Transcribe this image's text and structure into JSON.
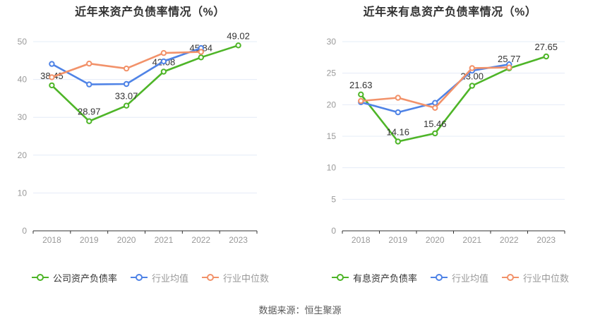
{
  "page": {
    "source_note": "数据来源：恒生聚源"
  },
  "colors": {
    "company_line": "#4eb528",
    "industry_avg_line": "#4f83e6",
    "industry_median_line": "#f2926a",
    "grid_line": "#e4ecf7",
    "axis_line": "#333333",
    "tick_label": "#999999",
    "data_label": "#333333",
    "title_text": "#333333"
  },
  "chart_data": [
    {
      "type": "line",
      "title": "近年来资产负债率情况（%）",
      "categories": [
        "2018",
        "2019",
        "2020",
        "2021",
        "2022",
        "2023"
      ],
      "ylim": [
        0,
        50
      ],
      "yticks": [
        0,
        10,
        20,
        30,
        40,
        50
      ],
      "grid": true,
      "legend_position": "bottom",
      "series": [
        {
          "name": "公司资产负债率",
          "color": "company_line",
          "values": [
            38.45,
            28.97,
            33.07,
            42.08,
            45.84,
            49.02
          ],
          "point_labels": [
            "38.45",
            "28.97",
            "33.07",
            "42.08",
            "45.84",
            "49.02"
          ]
        },
        {
          "name": "行业均值",
          "color": "industry_avg_line",
          "values": [
            44.1,
            38.7,
            38.8,
            44.8,
            48.3,
            null
          ]
        },
        {
          "name": "行业中位数",
          "color": "industry_median_line",
          "values": [
            40.6,
            44.2,
            42.9,
            47.0,
            47.3,
            null
          ]
        }
      ]
    },
    {
      "type": "line",
      "title": "近年来有息资产负债率情况（%）",
      "categories": [
        "2018",
        "2019",
        "2020",
        "2021",
        "2022",
        "2023"
      ],
      "ylim": [
        0,
        30
      ],
      "yticks": [
        0,
        5,
        10,
        15,
        20,
        25,
        30
      ],
      "grid": true,
      "legend_position": "bottom",
      "series": [
        {
          "name": "有息资产负债率",
          "color": "company_line",
          "values": [
            21.63,
            14.16,
            15.46,
            23.0,
            25.77,
            27.65
          ],
          "point_labels": [
            "21.63",
            "14.16",
            "15.46",
            "23.00",
            "25.77",
            "27.65"
          ]
        },
        {
          "name": "行业均值",
          "color": "industry_avg_line",
          "values": [
            20.4,
            18.8,
            20.3,
            25.4,
            26.4,
            null
          ]
        },
        {
          "name": "行业中位数",
          "color": "industry_median_line",
          "values": [
            20.6,
            21.1,
            19.5,
            25.8,
            25.9,
            null
          ]
        }
      ]
    }
  ]
}
